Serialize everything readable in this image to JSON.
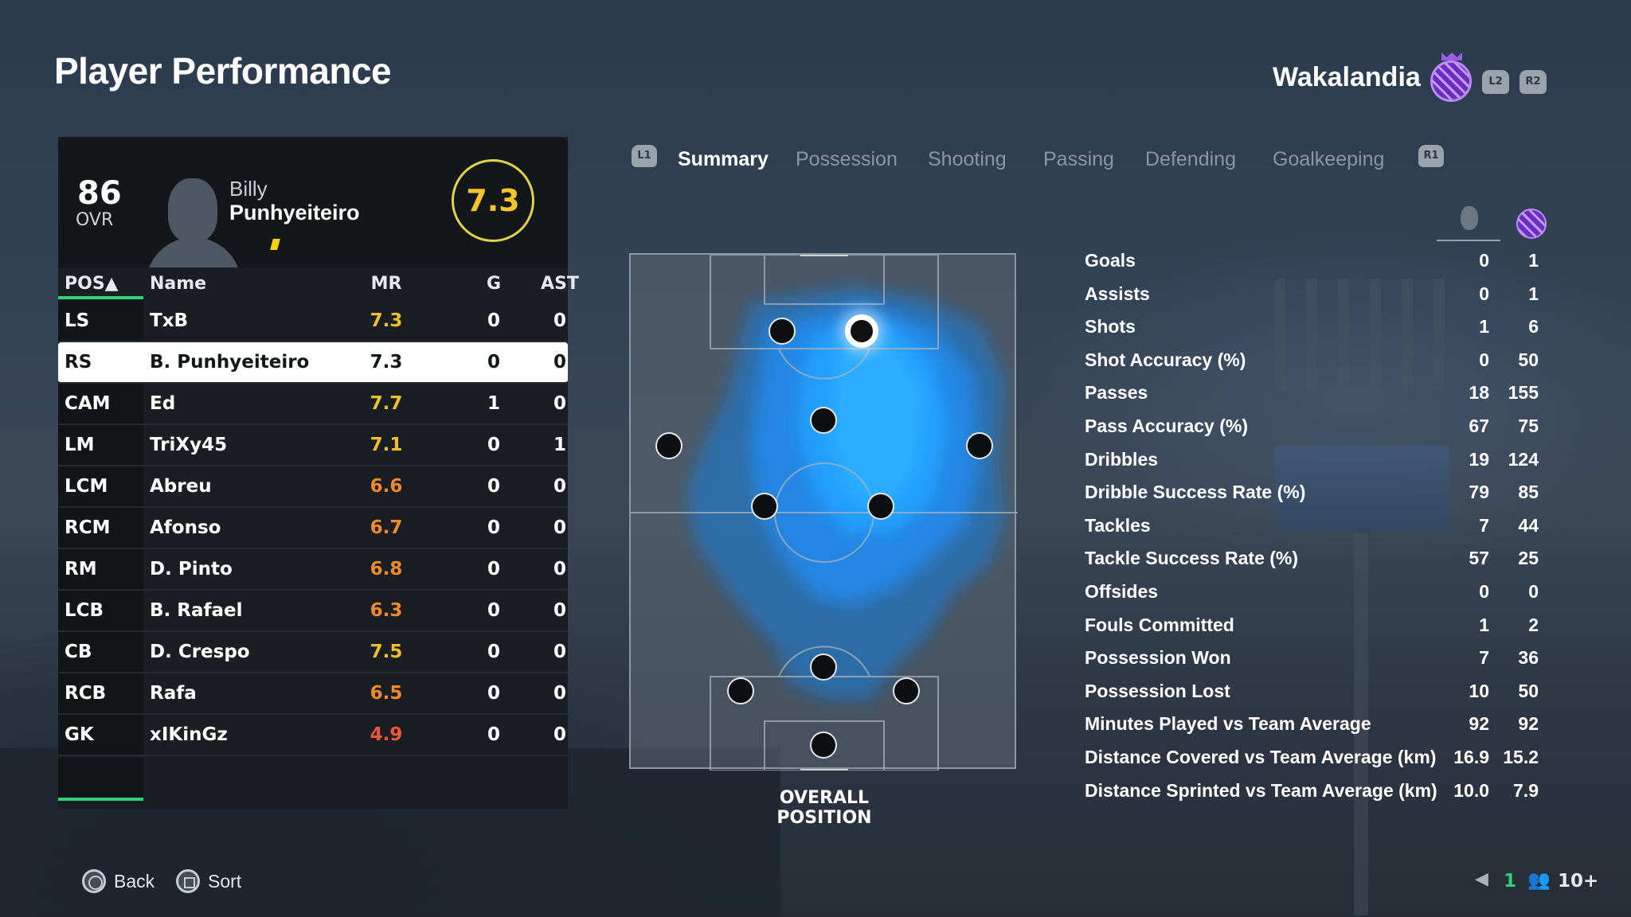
{
  "header": {
    "title": "Player Performance",
    "club": "Wakalandia",
    "l2": "L2",
    "r2": "R2"
  },
  "player": {
    "ovr": "86",
    "ovr_label": "OVR",
    "first_name": "Billy",
    "last_name": "Punhyeiteiro",
    "rating": "7.3"
  },
  "table": {
    "headers": {
      "pos": "POS▲",
      "name": "Name",
      "mr": "MR",
      "g": "G",
      "ast": "AST"
    },
    "rows": [
      {
        "pos": "LS",
        "name": "TxB",
        "mr": "7.3",
        "g": "0",
        "ast": "0"
      },
      {
        "pos": "RS",
        "name": "B. Punhyeiteiro",
        "mr": "7.3",
        "g": "0",
        "ast": "0"
      },
      {
        "pos": "CAM",
        "name": "Ed",
        "mr": "7.7",
        "g": "1",
        "ast": "0"
      },
      {
        "pos": "LM",
        "name": "TriXy45",
        "mr": "7.1",
        "g": "0",
        "ast": "1"
      },
      {
        "pos": "LCM",
        "name": "Abreu",
        "mr": "6.6",
        "g": "0",
        "ast": "0"
      },
      {
        "pos": "RCM",
        "name": "Afonso",
        "mr": "6.7",
        "g": "0",
        "ast": "0"
      },
      {
        "pos": "RM",
        "name": "D. Pinto",
        "mr": "6.8",
        "g": "0",
        "ast": "0"
      },
      {
        "pos": "LCB",
        "name": "B. Rafael",
        "mr": "6.3",
        "g": "0",
        "ast": "0"
      },
      {
        "pos": "CB",
        "name": "D. Crespo",
        "mr": "7.5",
        "g": "0",
        "ast": "0"
      },
      {
        "pos": "RCB",
        "name": "Rafa",
        "mr": "6.5",
        "g": "0",
        "ast": "0"
      },
      {
        "pos": "GK",
        "name": "xIKinGz",
        "mr": "4.9",
        "g": "0",
        "ast": "0"
      }
    ]
  },
  "tabs": {
    "l1": "L1",
    "r1": "R1",
    "items": [
      "Summary",
      "Possession",
      "Shooting",
      "Passing",
      "Defending",
      "Goalkeeping"
    ],
    "active": "Summary"
  },
  "pitch": {
    "label": "OVERALL POSITION"
  },
  "stats": [
    {
      "label": "Goals",
      "player": "0",
      "team": "1"
    },
    {
      "label": "Assists",
      "player": "0",
      "team": "1"
    },
    {
      "label": "Shots",
      "player": "1",
      "team": "6"
    },
    {
      "label": "Shot Accuracy (%)",
      "player": "0",
      "team": "50"
    },
    {
      "label": "Passes",
      "player": "18",
      "team": "155"
    },
    {
      "label": "Pass Accuracy (%)",
      "player": "67",
      "team": "75"
    },
    {
      "label": "Dribbles",
      "player": "19",
      "team": "124"
    },
    {
      "label": "Dribble Success Rate (%)",
      "player": "79",
      "team": "85"
    },
    {
      "label": "Tackles",
      "player": "7",
      "team": "44"
    },
    {
      "label": "Tackle Success Rate (%)",
      "player": "57",
      "team": "25"
    },
    {
      "label": "Offsides",
      "player": "0",
      "team": "0"
    },
    {
      "label": "Fouls Committed",
      "player": "1",
      "team": "2"
    },
    {
      "label": "Possession Won",
      "player": "7",
      "team": "36"
    },
    {
      "label": "Possession Lost",
      "player": "10",
      "team": "50"
    },
    {
      "label": "Minutes Played vs Team Average",
      "player": "92",
      "team": "92"
    },
    {
      "label": "Distance Covered vs Team Average (km)",
      "player": "16.9",
      "team": "15.2"
    },
    {
      "label": "Distance Sprinted vs Team Average (km)",
      "player": "10.0",
      "team": "7.9"
    }
  ],
  "footer": {
    "back": "Back",
    "sort": "Sort",
    "count": "1",
    "players": "10+"
  },
  "colors": {
    "accent_green": "#2fd17a",
    "rating_gold": "#f1c62d",
    "heat_blue": "#1e90ff",
    "club_purple": "#6a2fc2"
  }
}
